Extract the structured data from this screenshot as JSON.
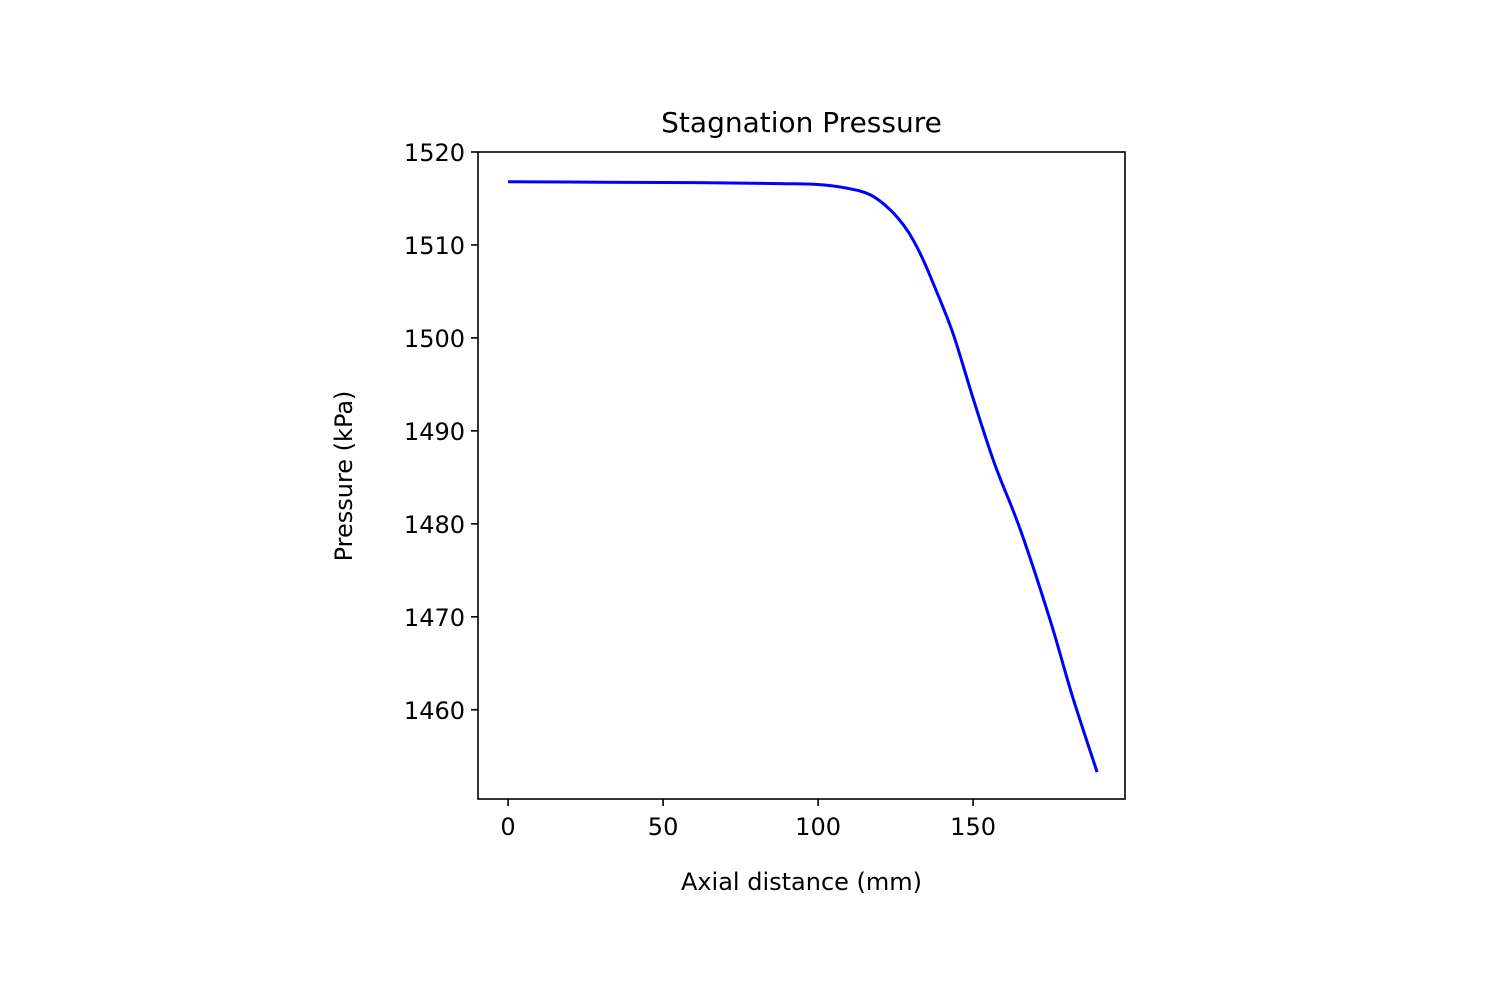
{
  "chart_data": {
    "type": "line",
    "title": "Stagnation Pressure",
    "xlabel": "Axial distance (mm)",
    "ylabel": "Pressure (kPa)",
    "xlim": [
      -9.7,
      199
    ],
    "ylim": [
      1450.4,
      1520
    ],
    "xticks": [
      0,
      50,
      100,
      150
    ],
    "yticks": [
      1460,
      1470,
      1480,
      1490,
      1500,
      1510,
      1520
    ],
    "grid": false,
    "series": [
      {
        "color": "#0000ff",
        "x": [
          0,
          30,
          60,
          87.7,
          100,
          109.4,
          116.8,
          123.2,
          128.7,
          132.9,
          137.1,
          143.5,
          150,
          157,
          165.2,
          174.8,
          182,
          190
        ],
        "y": [
          1516.8,
          1516.75,
          1516.7,
          1516.6,
          1516.5,
          1516.1,
          1515.4,
          1513.8,
          1511.6,
          1509.1,
          1505.9,
          1500.5,
          1493.5,
          1486.4,
          1479.4,
          1469.7,
          1461.5,
          1453.3
        ]
      }
    ]
  }
}
